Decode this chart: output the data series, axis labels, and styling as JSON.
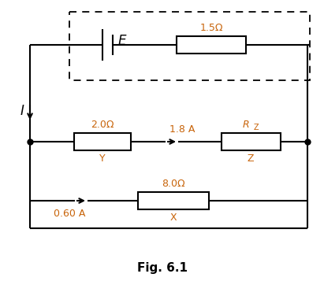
{
  "fig_label": "Fig. 6.1",
  "bg_color": "#ffffff",
  "lc": "#000000",
  "oc": "#c8640a",
  "figsize": [
    4.11,
    3.57
  ],
  "dpi": 100,
  "battery_label": "E",
  "r_int_label": "1.5Ω",
  "r_Y_label": "2.0Ω",
  "r_Y_name": "Y",
  "r_Z_top": "R",
  "r_Z_sub": "Z",
  "r_Z_name": "Z",
  "r_X_label": "8.0Ω",
  "r_X_name": "X",
  "cur_I": "I",
  "cur_18": "1.8 A",
  "cur_06": "0.60 A"
}
